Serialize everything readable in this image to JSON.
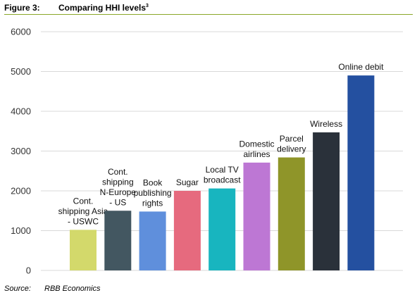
{
  "figure": {
    "number": "Figure 3:",
    "title": "Comparing HHI levels",
    "title_superscript": "3",
    "rule_color": "#8aa829"
  },
  "source": {
    "label": "Source:",
    "text": "RBB Economics"
  },
  "chart_data": {
    "type": "bar",
    "title": "",
    "xlabel": "",
    "ylabel": "",
    "ylim": [
      0,
      6000
    ],
    "yticks": [
      0,
      1000,
      2000,
      3000,
      4000,
      5000,
      6000
    ],
    "grid": true,
    "legend": "none",
    "categories": [
      [
        "Cont.",
        "shipping Asia",
        "- USWC"
      ],
      [
        "Cont.",
        "shipping",
        "N-Europe",
        "- US"
      ],
      [
        "Book",
        "publishing",
        "rights"
      ],
      [
        "Sugar"
      ],
      [
        "Local TV",
        "broadcast"
      ],
      [
        "Domestic",
        "airlines"
      ],
      [
        "Parcel",
        "delivery"
      ],
      [
        "Wireless"
      ],
      [
        "Online debit"
      ]
    ],
    "values": [
      1020,
      1500,
      1480,
      2000,
      2060,
      2710,
      2840,
      3470,
      4900
    ],
    "colors": [
      "#d3d96b",
      "#435761",
      "#5f8fdc",
      "#e66a7e",
      "#18b5bf",
      "#bd77d4",
      "#8f9529",
      "#2a313a",
      "#2450a0"
    ]
  }
}
